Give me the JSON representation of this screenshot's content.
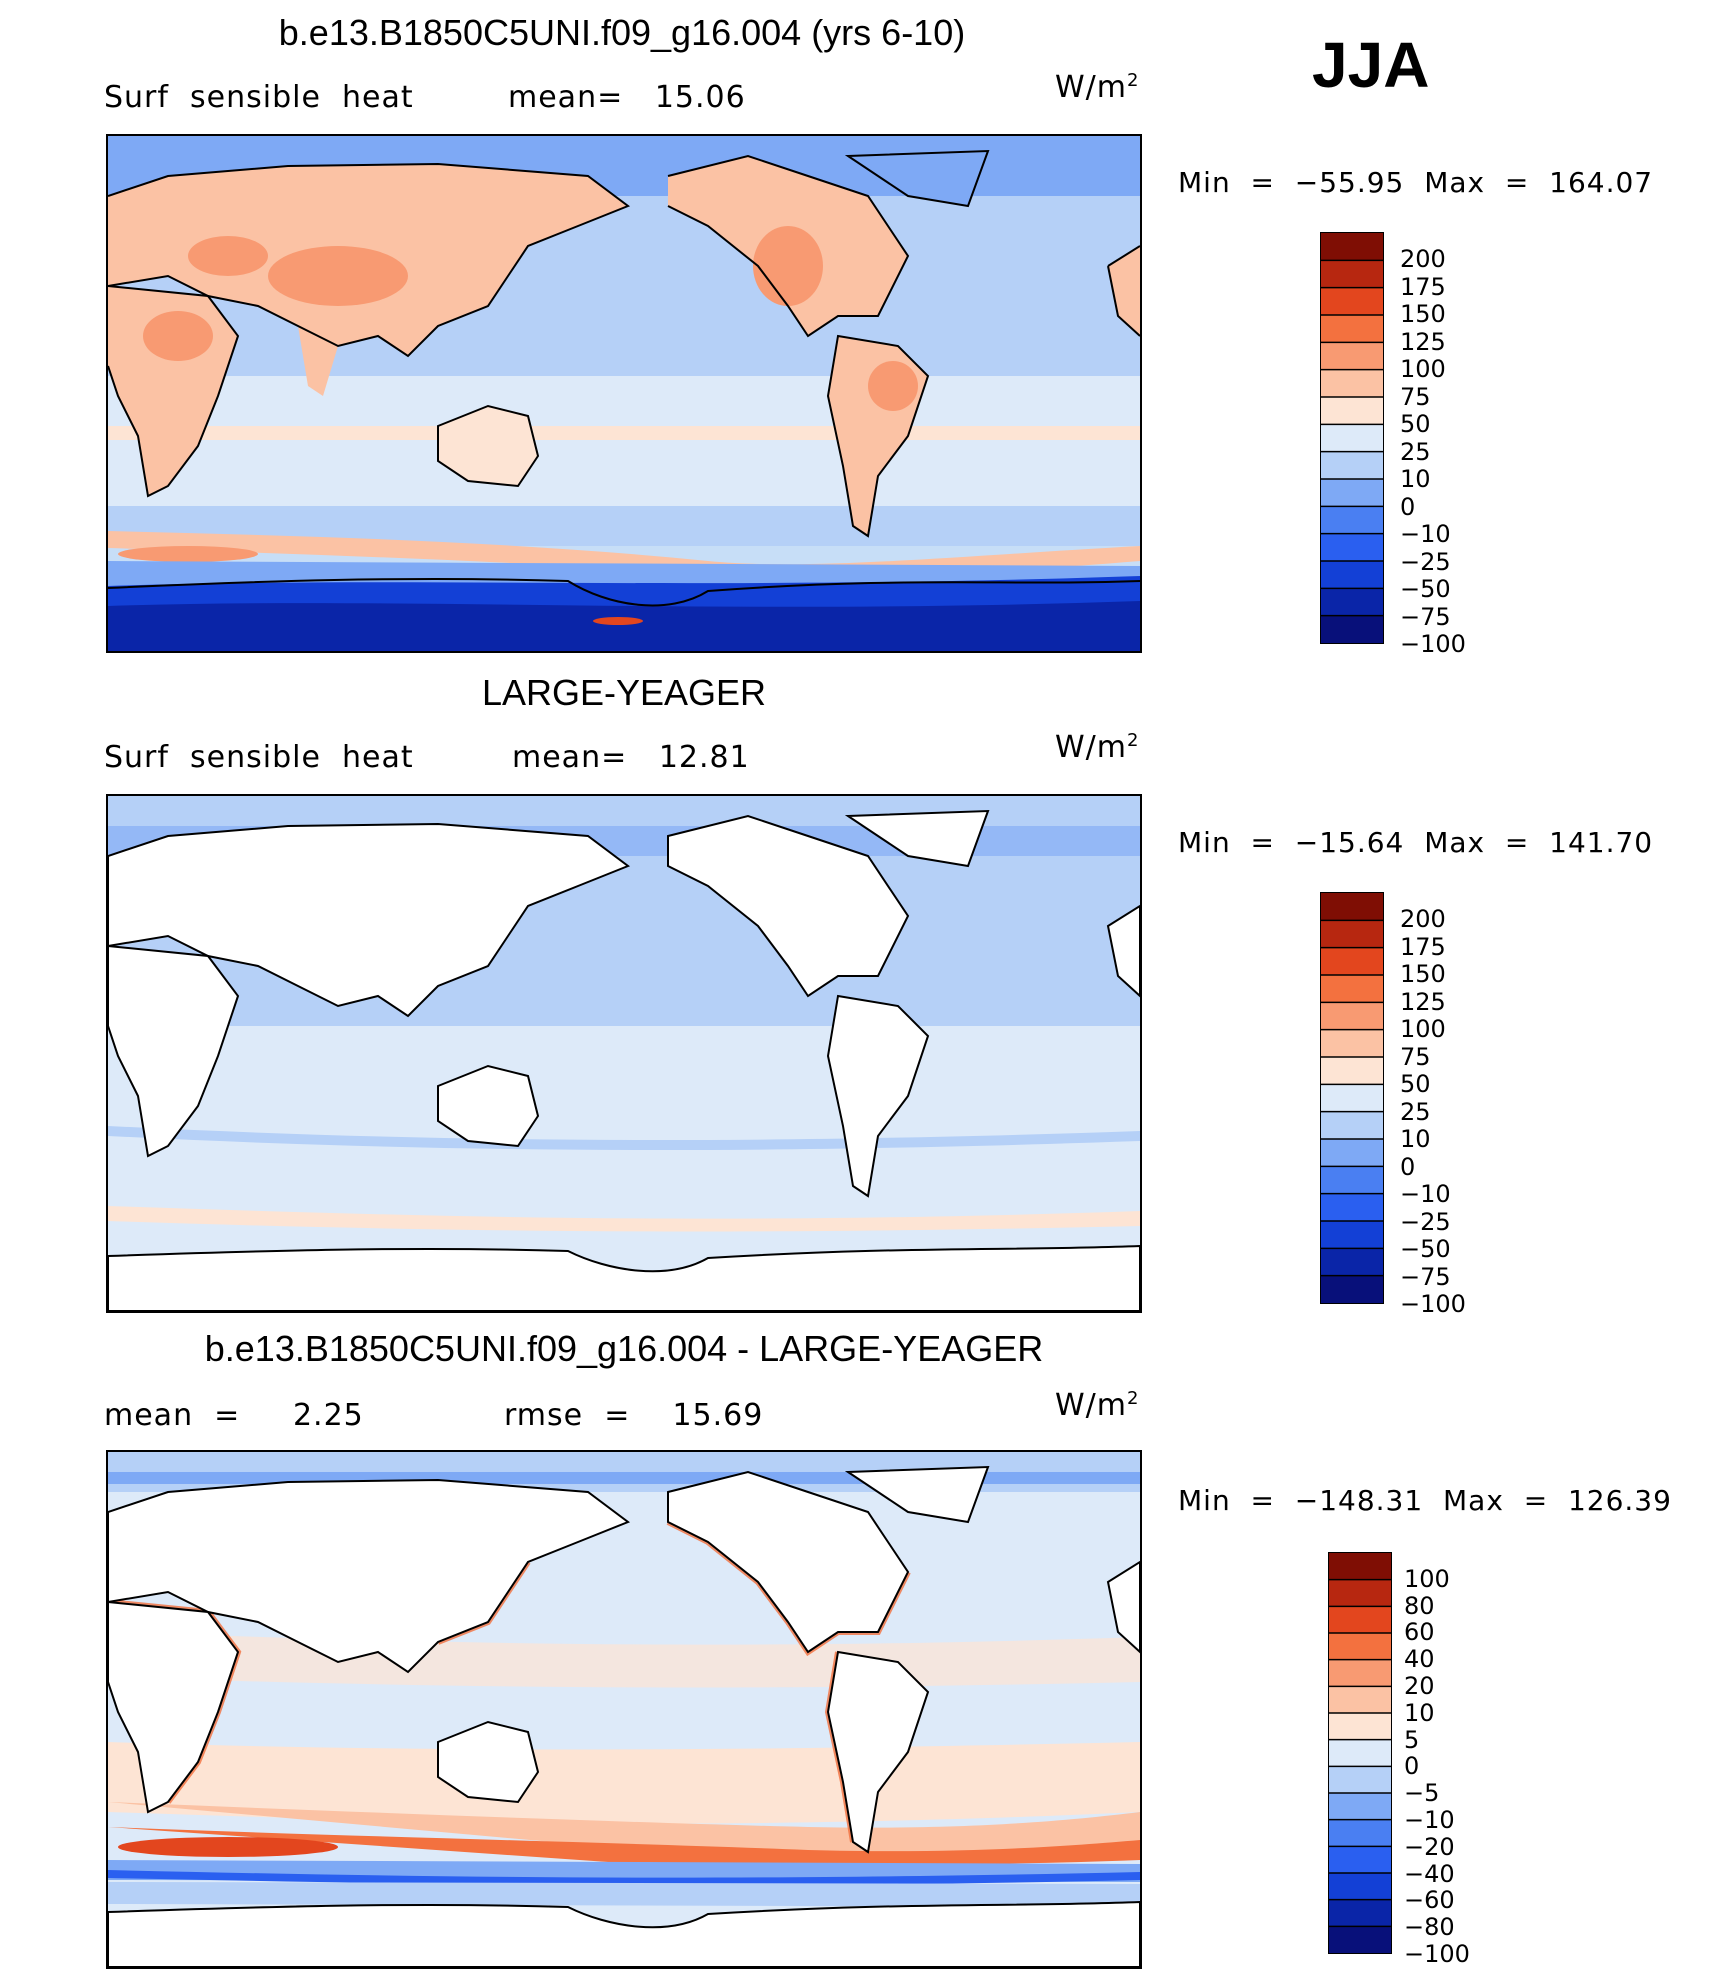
{
  "season": "JJA",
  "colors": {
    "levels_div": [
      "#08107a",
      "#0a25a8",
      "#1340d6",
      "#2a5ff0",
      "#4a7ff2",
      "#7ea9f5",
      "#b5d0f7",
      "#ddeaf9",
      "#fde4d4",
      "#fbc2a4",
      "#f89a72",
      "#f3713f",
      "#e3461e",
      "#b72710",
      "#7f0e04"
    ],
    "land_white": "#ffffff"
  },
  "panels": [
    {
      "title": "b.e13.B1850C5UNI.f09_g16.004 (yrs 6-10)",
      "left_label": "Surf  sensible  heat",
      "mid_label": "mean=   15.06",
      "units": "W/m",
      "units_sup": "2",
      "min_label": "Min  =  −55.95",
      "max_label": "Max  =  164.07",
      "colorbar_ticks": [
        "200",
        "175",
        "150",
        "125",
        "100",
        "75",
        "50",
        "25",
        "10",
        "0",
        "−10",
        "−25",
        "−50",
        "−75",
        "−100"
      ]
    },
    {
      "title": "LARGE-YEAGER",
      "left_label": "Surf  sensible  heat",
      "mid_label": "mean=   12.81",
      "units": "W/m",
      "units_sup": "2",
      "min_label": "Min  =  −15.64",
      "max_label": "Max  =  141.70",
      "colorbar_ticks": [
        "200",
        "175",
        "150",
        "125",
        "100",
        "75",
        "50",
        "25",
        "10",
        "0",
        "−10",
        "−25",
        "−50",
        "−75",
        "−100"
      ]
    },
    {
      "title": "b.e13.B1850C5UNI.f09_g16.004 - LARGE-YEAGER",
      "left_label": "mean  =     2.25",
      "mid_label": "rmse  =    15.69",
      "units": "W/m",
      "units_sup": "2",
      "min_label": "Min  =  −148.31",
      "max_label": "Max  =  126.39",
      "colorbar_ticks": [
        "100",
        "80",
        "60",
        "40",
        "20",
        "10",
        "5",
        "0",
        "−5",
        "−10",
        "−20",
        "−40",
        "−60",
        "−80",
        "−100"
      ]
    }
  ],
  "chart_data": [
    {
      "type": "heatmap",
      "title": "b.e13.B1850C5UNI.f09_g16.004 (yrs 6-10)",
      "variable": "Surf  sensible  heat",
      "units": "W/m2",
      "mean": 15.06,
      "min": -55.95,
      "max": 164.07,
      "colorbar_levels": [
        200,
        175,
        150,
        125,
        100,
        75,
        50,
        25,
        10,
        0,
        -10,
        -25,
        -50,
        -75,
        -100
      ]
    },
    {
      "type": "heatmap",
      "title": "LARGE-YEAGER",
      "variable": "Surf  sensible  heat",
      "units": "W/m2",
      "mean": 12.81,
      "min": -15.64,
      "max": 141.7,
      "colorbar_levels": [
        200,
        175,
        150,
        125,
        100,
        75,
        50,
        25,
        10,
        0,
        -10,
        -25,
        -50,
        -75,
        -100
      ]
    },
    {
      "type": "heatmap",
      "title": "b.e13.B1850C5UNI.f09_g16.004 - LARGE-YEAGER",
      "units": "W/m2",
      "mean": 2.25,
      "rmse": 15.69,
      "min": -148.31,
      "max": 126.39,
      "colorbar_levels": [
        100,
        80,
        60,
        40,
        20,
        10,
        5,
        0,
        -5,
        -10,
        -20,
        -40,
        -60,
        -80,
        -100
      ]
    }
  ]
}
